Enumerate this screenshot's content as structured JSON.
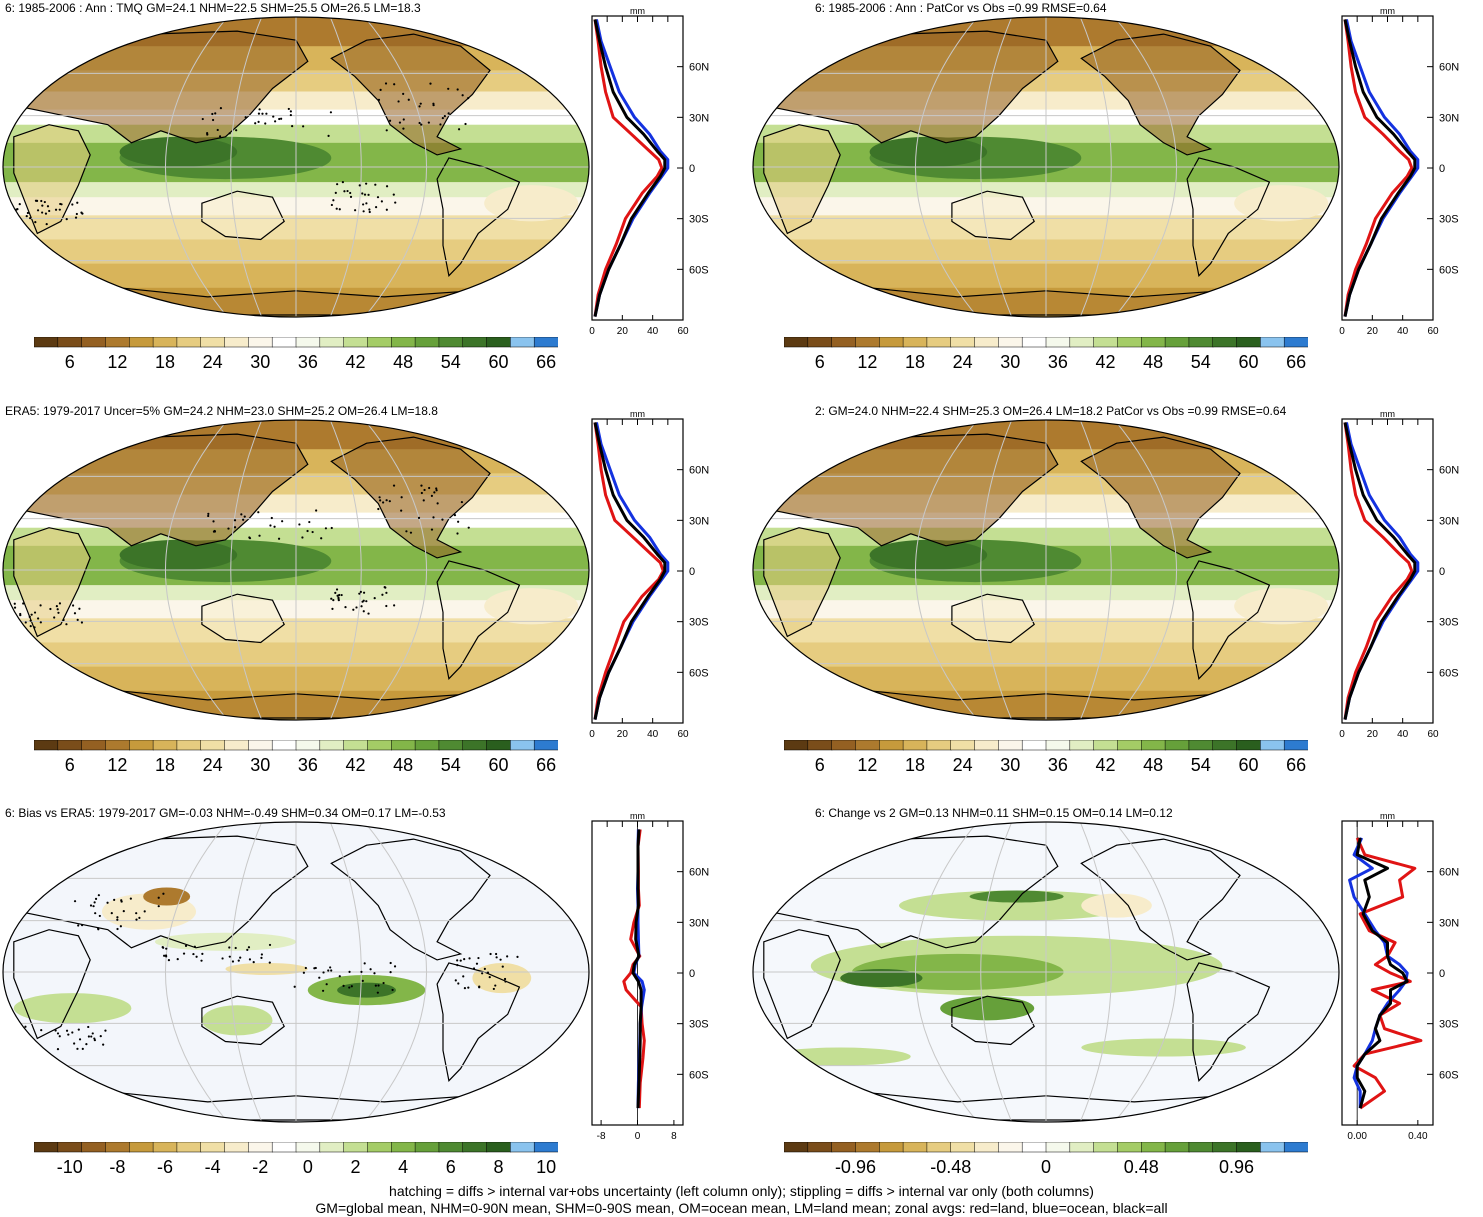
{
  "panels": [
    {
      "id": "p1",
      "title": "6: 1985-2006 : Ann : TMQ GM=24.1 NHM=22.5 SHM=25.5 OM=26.5 LM=18.3",
      "kind": "abs",
      "row": 0,
      "col": 0,
      "stipple": true
    },
    {
      "id": "p2",
      "title": "6: 1985-2006 : Ann : PatCor vs Obs =0.99 RMSE=0.64",
      "kind": "abs",
      "row": 0,
      "col": 1,
      "stipple": false
    },
    {
      "id": "p3",
      "title": "ERA5: 1979-2017 Uncer=5% GM=24.2 NHM=23.0 SHM=25.2 OM=26.4 LM=18.8",
      "kind": "abs",
      "row": 1,
      "col": 0,
      "stipple": true
    },
    {
      "id": "p4",
      "title": "2: GM=24.0 NHM=22.4 SHM=25.3 OM=26.4 LM=18.2 PatCor vs Obs =0.99 RMSE=0.64",
      "kind": "abs",
      "row": 1,
      "col": 1,
      "stipple": false
    },
    {
      "id": "p5",
      "title": "6: Bias vs ERA5: 1979-2017 GM=-0.03 NHM=-0.49 SHM=0.34 OM=0.17 LM=-0.53",
      "kind": "bias",
      "row": 2,
      "col": 0,
      "stipple": true
    },
    {
      "id": "p6",
      "title": "6: Change vs 2 GM=0.13 NHM=0.11 SHM=0.15 OM=0.14 LM=0.12",
      "kind": "change",
      "row": 2,
      "col": 1,
      "stipple": false
    }
  ],
  "zonal_unit": "mm",
  "lat_labels": [
    "60N",
    "30N",
    "0",
    "30S",
    "60S"
  ],
  "colorbars": {
    "abs": {
      "ticks": [
        "6",
        "12",
        "18",
        "24",
        "30",
        "36",
        "42",
        "48",
        "54",
        "60",
        "66"
      ]
    },
    "bias": {
      "ticks": [
        "-10",
        "-8",
        "-6",
        "-4",
        "-2",
        "0",
        "2",
        "4",
        "6",
        "8",
        "10"
      ]
    },
    "change": {
      "ticks": [
        "-0.96",
        "-0.48",
        "0",
        "0.48",
        "0.96"
      ]
    }
  },
  "zonal_xticks": {
    "abs": [
      "0",
      "20",
      "40",
      "60"
    ],
    "bias": [
      "-8",
      "0",
      "8"
    ],
    "change": [
      "0.00",
      "0.40"
    ]
  },
  "palette": [
    "#5c3a12",
    "#7a4d1a",
    "#946022",
    "#ad7a2e",
    "#c69a3c",
    "#d8b45a",
    "#e6cc80",
    "#f0dfa6",
    "#f7eccb",
    "#fbf6ea",
    "#ffffff",
    "#f5f9ec",
    "#e1eec3",
    "#c4df93",
    "#a4cc66",
    "#83b649",
    "#66a03a",
    "#4f8a32",
    "#3c7428",
    "#2a5f1e",
    "#8ac3ee",
    "#2d7bd0"
  ],
  "chart_data": [
    {
      "type": "line",
      "panel": "p1",
      "xlabel": "mm",
      "xlim": [
        0,
        60
      ],
      "ylim": [
        -90,
        90
      ],
      "series": [
        {
          "color": "#e01414",
          "lat": [
            -88,
            -75,
            -60,
            -45,
            -30,
            -15,
            -5,
            0,
            5,
            10,
            20,
            30,
            45,
            60,
            75,
            88
          ],
          "values": [
            2,
            4,
            9,
            16,
            22,
            33,
            43,
            46,
            44,
            38,
            26,
            14,
            9,
            6,
            4,
            2
          ]
        },
        {
          "color": "#1432e0",
          "lat": [
            -88,
            -75,
            -60,
            -45,
            -30,
            -15,
            -5,
            0,
            5,
            10,
            20,
            30,
            45,
            60,
            75,
            88
          ],
          "values": [
            2,
            5,
            11,
            19,
            27,
            38,
            46,
            50,
            50,
            45,
            38,
            28,
            18,
            12,
            6,
            3
          ]
        },
        {
          "color": "#000000",
          "lat": [
            -88,
            -75,
            -60,
            -45,
            -30,
            -15,
            -5,
            0,
            5,
            10,
            20,
            30,
            45,
            60,
            75,
            88
          ],
          "values": [
            2,
            5,
            11,
            19,
            26,
            37,
            45,
            48,
            48,
            43,
            34,
            23,
            14,
            9,
            5,
            2
          ]
        }
      ]
    },
    {
      "type": "line",
      "panel": "p2",
      "xlabel": "mm",
      "xlim": [
        0,
        60
      ],
      "ylim": [
        -90,
        90
      ],
      "series": [
        {
          "color": "#e01414",
          "lat": [
            -88,
            -75,
            -60,
            -45,
            -30,
            -15,
            -5,
            0,
            5,
            10,
            20,
            30,
            45,
            60,
            75,
            88
          ],
          "values": [
            2,
            4,
            9,
            16,
            22,
            33,
            43,
            46,
            44,
            38,
            27,
            15,
            9,
            6,
            4,
            2
          ]
        },
        {
          "color": "#1432e0",
          "lat": [
            -88,
            -75,
            -60,
            -45,
            -30,
            -15,
            -5,
            0,
            5,
            10,
            20,
            30,
            45,
            60,
            75,
            88
          ],
          "values": [
            2,
            5,
            11,
            19,
            27,
            38,
            46,
            50,
            50,
            45,
            38,
            28,
            18,
            12,
            6,
            3
          ]
        },
        {
          "color": "#000000",
          "lat": [
            -88,
            -75,
            -60,
            -45,
            -30,
            -15,
            -5,
            0,
            5,
            10,
            20,
            30,
            45,
            60,
            75,
            88
          ],
          "values": [
            2,
            5,
            11,
            19,
            26,
            37,
            45,
            48,
            48,
            43,
            34,
            23,
            14,
            9,
            5,
            2
          ]
        }
      ]
    },
    {
      "type": "line",
      "panel": "p3",
      "xlabel": "mm",
      "xlim": [
        0,
        60
      ],
      "ylim": [
        -90,
        90
      ],
      "series": [
        {
          "color": "#e01414",
          "lat": [
            -88,
            -75,
            -60,
            -45,
            -30,
            -15,
            -5,
            0,
            5,
            10,
            20,
            30,
            45,
            60,
            75,
            88
          ],
          "values": [
            2,
            4,
            9,
            15,
            21,
            33,
            44,
            47,
            45,
            39,
            27,
            15,
            9,
            6,
            4,
            2
          ]
        },
        {
          "color": "#1432e0",
          "lat": [
            -88,
            -75,
            -60,
            -45,
            -30,
            -15,
            -5,
            0,
            5,
            10,
            20,
            30,
            45,
            60,
            75,
            88
          ],
          "values": [
            2,
            5,
            11,
            19,
            27,
            38,
            46,
            50,
            50,
            45,
            38,
            28,
            18,
            12,
            6,
            3
          ]
        },
        {
          "color": "#000000",
          "lat": [
            -88,
            -75,
            -60,
            -45,
            -30,
            -15,
            -5,
            0,
            5,
            10,
            20,
            30,
            45,
            60,
            75,
            88
          ],
          "values": [
            2,
            5,
            11,
            19,
            26,
            37,
            45,
            48,
            48,
            43,
            34,
            23,
            14,
            9,
            5,
            2
          ]
        }
      ]
    },
    {
      "type": "line",
      "panel": "p4",
      "xlabel": "mm",
      "xlim": [
        0,
        60
      ],
      "ylim": [
        -90,
        90
      ],
      "series": [
        {
          "color": "#e01414",
          "lat": [
            -88,
            -75,
            -60,
            -45,
            -30,
            -15,
            -5,
            0,
            5,
            10,
            20,
            30,
            45,
            60,
            75,
            88
          ],
          "values": [
            2,
            4,
            9,
            16,
            22,
            33,
            43,
            46,
            44,
            38,
            27,
            15,
            9,
            6,
            4,
            2
          ]
        },
        {
          "color": "#1432e0",
          "lat": [
            -88,
            -75,
            -60,
            -45,
            -30,
            -15,
            -5,
            0,
            5,
            10,
            20,
            30,
            45,
            60,
            75,
            88
          ],
          "values": [
            2,
            5,
            11,
            19,
            27,
            38,
            46,
            50,
            50,
            45,
            38,
            28,
            18,
            12,
            6,
            3
          ]
        },
        {
          "color": "#000000",
          "lat": [
            -88,
            -75,
            -60,
            -45,
            -30,
            -15,
            -5,
            0,
            5,
            10,
            20,
            30,
            45,
            60,
            75,
            88
          ],
          "values": [
            2,
            5,
            11,
            19,
            26,
            37,
            45,
            48,
            48,
            43,
            34,
            23,
            14,
            9,
            5,
            2
          ]
        }
      ]
    },
    {
      "type": "line",
      "panel": "p5",
      "xlabel": "mm",
      "xlim": [
        -10,
        10
      ],
      "ylim": [
        -90,
        90
      ],
      "series": [
        {
          "color": "#e01414",
          "lat": [
            -80,
            -65,
            -50,
            -40,
            -30,
            -20,
            -10,
            -5,
            0,
            5,
            10,
            20,
            30,
            40,
            50,
            60,
            75,
            85
          ],
          "values": [
            0.4,
            0.6,
            1.2,
            1.5,
            1.0,
            0.8,
            -2.5,
            -3.0,
            -1.5,
            -1.0,
            0.5,
            -1.5,
            -0.8,
            0.4,
            0.2,
            0.2,
            0.1,
            0.6
          ]
        },
        {
          "color": "#1432e0",
          "lat": [
            -80,
            -65,
            -50,
            -40,
            -30,
            -20,
            -10,
            -5,
            0,
            5,
            10,
            20,
            30,
            40,
            50,
            60,
            75,
            85
          ],
          "values": [
            0.1,
            0.2,
            0.4,
            0.5,
            0.6,
            0.9,
            1.5,
            1.0,
            -0.8,
            -0.5,
            0.3,
            0.2,
            0.1,
            0.1,
            0.0,
            0.1,
            0.1,
            0.2
          ]
        },
        {
          "color": "#000000",
          "lat": [
            -80,
            -65,
            -50,
            -40,
            -30,
            -20,
            -10,
            -5,
            0,
            5,
            10,
            20,
            30,
            40,
            50,
            60,
            75,
            85
          ],
          "values": [
            0.1,
            0.3,
            0.5,
            0.6,
            0.6,
            0.8,
            0.8,
            0.2,
            -1.0,
            -0.7,
            0.3,
            -0.4,
            -0.3,
            0.2,
            0.1,
            0.1,
            0.1,
            0.3
          ]
        }
      ]
    },
    {
      "type": "line",
      "panel": "p6",
      "xlabel": "mm",
      "xlim": [
        -0.1,
        0.5
      ],
      "ylim": [
        -90,
        90
      ],
      "series": [
        {
          "color": "#e01414",
          "lat": [
            -80,
            -70,
            -62,
            -55,
            -48,
            -40,
            -33,
            -25,
            -18,
            -10,
            -5,
            0,
            5,
            10,
            18,
            25,
            35,
            45,
            55,
            62,
            70,
            80
          ],
          "values": [
            0.02,
            0.18,
            0.12,
            -0.02,
            0.05,
            0.42,
            0.18,
            0.15,
            0.28,
            0.1,
            0.35,
            0.22,
            0.12,
            0.2,
            0.25,
            0.08,
            0.02,
            0.3,
            0.28,
            0.38,
            0.05,
            0.0
          ]
        },
        {
          "color": "#1432e0",
          "lat": [
            -80,
            -70,
            -62,
            -55,
            -48,
            -40,
            -33,
            -25,
            -18,
            -10,
            -5,
            0,
            5,
            10,
            18,
            25,
            35,
            45,
            55,
            62,
            70,
            80
          ],
          "values": [
            0.02,
            0.02,
            -0.02,
            0.0,
            0.05,
            0.1,
            0.12,
            0.15,
            0.2,
            0.28,
            0.32,
            0.33,
            0.28,
            0.2,
            0.18,
            0.12,
            0.05,
            -0.02,
            -0.05,
            0.1,
            -0.02,
            0.03
          ]
        },
        {
          "color": "#000000",
          "lat": [
            -80,
            -70,
            -62,
            -55,
            -48,
            -40,
            -33,
            -25,
            -18,
            -10,
            -5,
            0,
            5,
            10,
            18,
            25,
            35,
            45,
            55,
            62,
            70,
            80
          ],
          "values": [
            0.02,
            0.05,
            0.0,
            0.0,
            0.05,
            0.15,
            0.12,
            0.15,
            0.22,
            0.22,
            0.33,
            0.3,
            0.22,
            0.2,
            0.2,
            0.1,
            0.04,
            0.08,
            0.05,
            0.2,
            0.0,
            0.02
          ]
        }
      ]
    }
  ],
  "footer": {
    "line1": "hatching = diffs > internal var+obs uncertainty (left column only); stippling = diffs > internal var only (both columns)",
    "line2": "GM=global mean, NHM=0-90N mean, SHM=0-90S mean, OM=ocean mean, LM=land mean; zonal avgs: red=land, blue=ocean, black=all"
  }
}
